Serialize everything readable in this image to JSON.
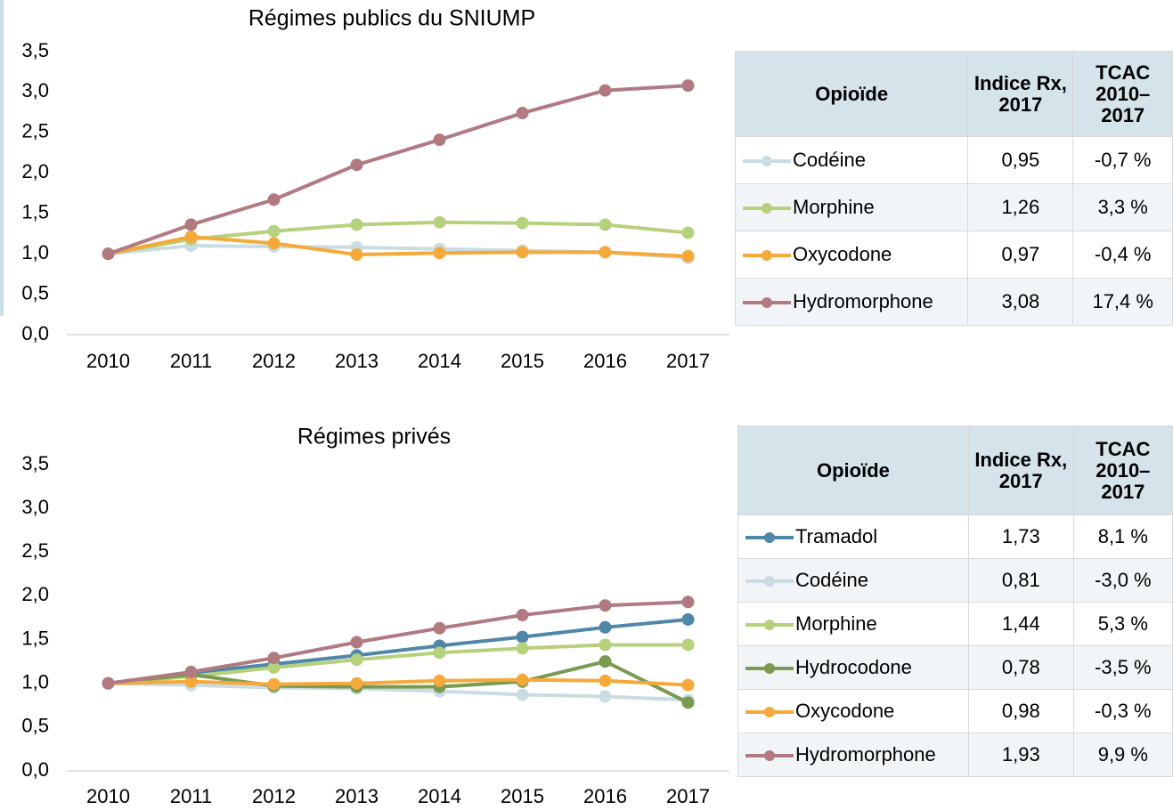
{
  "chart_data": [
    {
      "type": "line",
      "title": "Régimes publics du SNIUMP",
      "categories": [
        "2010",
        "2011",
        "2012",
        "2013",
        "2014",
        "2015",
        "2016",
        "2017"
      ],
      "ylim": [
        0,
        3.5
      ],
      "yticks": [
        {
          "value": 0,
          "label": "0,0"
        },
        {
          "value": 0.5,
          "label": "0,5"
        },
        {
          "value": 1,
          "label": "1,0"
        },
        {
          "value": 1.5,
          "label": "1,5"
        },
        {
          "value": 2,
          "label": "2,0"
        },
        {
          "value": 2.5,
          "label": "2,5"
        },
        {
          "value": 3,
          "label": "3,0"
        },
        {
          "value": 3.5,
          "label": "3,5"
        }
      ],
      "grid": false,
      "series": [
        {
          "name": "Codéine",
          "color": "#c9dce3",
          "values": [
            1.0,
            1.1,
            1.09,
            1.08,
            1.06,
            1.04,
            1.02,
            0.95
          ]
        },
        {
          "name": "Morphine",
          "color": "#b6d17c",
          "values": [
            1.0,
            1.18,
            1.28,
            1.36,
            1.39,
            1.38,
            1.36,
            1.26
          ]
        },
        {
          "name": "Oxycodone",
          "color": "#f5a93a",
          "values": [
            1.0,
            1.21,
            1.13,
            0.99,
            1.01,
            1.02,
            1.02,
            0.97
          ]
        },
        {
          "name": "Hydromorphone",
          "color": "#b07a80",
          "values": [
            1.0,
            1.36,
            1.67,
            2.1,
            2.41,
            2.74,
            3.02,
            3.08
          ]
        }
      ],
      "table": {
        "columns": [
          "Opioïde",
          "Indice Rx, 2017",
          "TCAC 2010–2017"
        ],
        "rows": [
          [
            "0,95",
            "-0,7 %"
          ],
          [
            "1,26",
            "3,3 %"
          ],
          [
            "0,97",
            "-0,4 %"
          ],
          [
            "3,08",
            "17,4 %"
          ]
        ]
      }
    },
    {
      "type": "line",
      "title": "Régimes privés",
      "categories": [
        "2010",
        "2011",
        "2012",
        "2013",
        "2014",
        "2015",
        "2016",
        "2017"
      ],
      "ylim": [
        0,
        3.5
      ],
      "yticks": [
        {
          "value": 0,
          "label": "0,0"
        },
        {
          "value": 0.5,
          "label": "0,5"
        },
        {
          "value": 1,
          "label": "1,0"
        },
        {
          "value": 1.5,
          "label": "1,5"
        },
        {
          "value": 2,
          "label": "2,0"
        },
        {
          "value": 2.5,
          "label": "2,5"
        },
        {
          "value": 3,
          "label": "3,0"
        },
        {
          "value": 3.5,
          "label": "3,5"
        }
      ],
      "grid": false,
      "series": [
        {
          "name": "Tramadol",
          "color": "#4f87a8",
          "values": [
            1.0,
            1.12,
            1.22,
            1.32,
            1.43,
            1.53,
            1.64,
            1.73
          ]
        },
        {
          "name": "Codéine",
          "color": "#c9dce3",
          "values": [
            1.0,
            0.98,
            0.95,
            0.94,
            0.91,
            0.87,
            0.85,
            0.81
          ]
        },
        {
          "name": "Morphine",
          "color": "#b6d17c",
          "values": [
            1.0,
            1.08,
            1.18,
            1.27,
            1.35,
            1.4,
            1.44,
            1.44
          ]
        },
        {
          "name": "Hydrocodone",
          "color": "#7a9a52",
          "values": [
            1.0,
            1.1,
            0.97,
            0.96,
            0.96,
            1.02,
            1.25,
            0.78
          ]
        },
        {
          "name": "Oxycodone",
          "color": "#f5a93a",
          "values": [
            1.0,
            1.02,
            0.99,
            1.0,
            1.03,
            1.04,
            1.03,
            0.98
          ]
        },
        {
          "name": "Hydromorphone",
          "color": "#b07a80",
          "values": [
            1.0,
            1.13,
            1.29,
            1.47,
            1.63,
            1.78,
            1.89,
            1.93
          ]
        }
      ],
      "table": {
        "columns": [
          "Opioïde",
          "Indice Rx, 2017",
          "TCAC 2010–2017"
        ],
        "rows": [
          [
            "1,73",
            "8,1 %"
          ],
          [
            "0,81",
            "-3,0 %"
          ],
          [
            "1,44",
            "5,3 %"
          ],
          [
            "0,78",
            "-3,5 %"
          ],
          [
            "0,98",
            "-0,3 %"
          ],
          [
            "1,93",
            "9,9 %"
          ]
        ]
      }
    }
  ]
}
